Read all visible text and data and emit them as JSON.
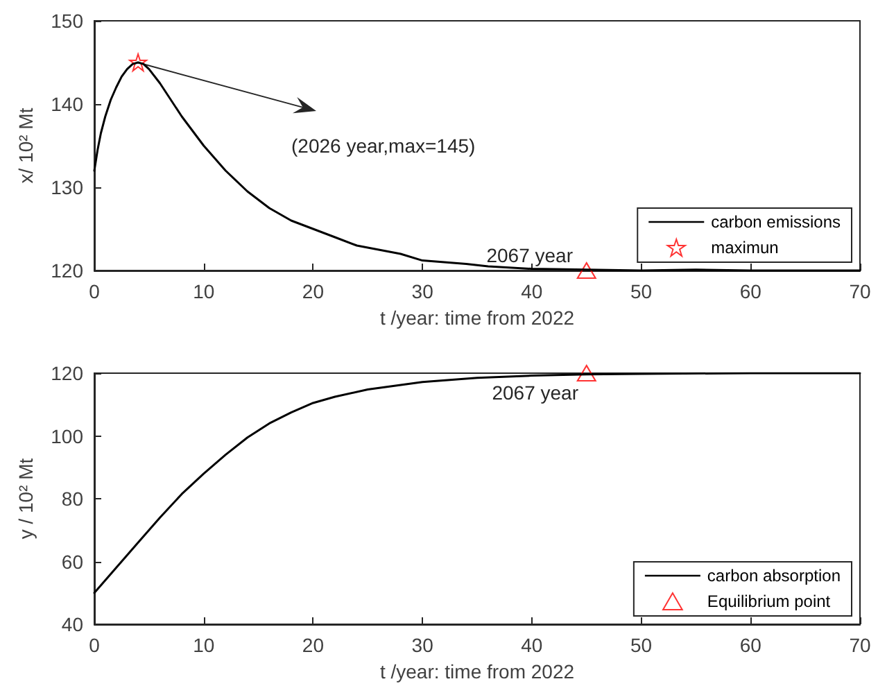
{
  "chart_data": [
    {
      "type": "line",
      "xlabel": "t /year: time from 2022",
      "ylabel": "x/ 10² Mt",
      "xlim": [
        0,
        70
      ],
      "xticks": [
        0,
        10,
        20,
        30,
        40,
        50,
        60,
        70
      ],
      "ylim": [
        120,
        150
      ],
      "yticks": [
        120,
        130,
        140,
        150
      ],
      "grid": false,
      "legend": "bottom right",
      "series": [
        {
          "name": "carbon emissions",
          "color": "#000000",
          "marker": "none",
          "x": [
            0,
            0.3,
            0.6,
            1,
            1.5,
            2,
            2.5,
            3,
            3.5,
            4,
            4.5,
            5,
            6,
            8,
            10,
            12,
            14,
            16,
            18,
            20,
            22,
            24,
            26,
            28,
            30,
            32,
            34,
            36,
            40,
            45,
            50,
            55,
            60,
            70
          ],
          "values": [
            132,
            134.5,
            136.5,
            138.5,
            140.5,
            142,
            143.3,
            144.2,
            144.8,
            145,
            144.8,
            144.2,
            142.5,
            138.5,
            135,
            132,
            129.5,
            127.5,
            126,
            125,
            124,
            123,
            122.5,
            122,
            121.2,
            121,
            120.8,
            120.5,
            120.2,
            120.1,
            120,
            120.1,
            120,
            120
          ]
        },
        {
          "name": "maximun",
          "type": "scatter",
          "color": "#ff0000",
          "marker": "star",
          "x": [
            4
          ],
          "values": [
            145
          ]
        },
        {
          "type": "scatter",
          "color": "#ff0000",
          "marker": "triangle",
          "x": [
            45
          ],
          "values": [
            120
          ]
        }
      ],
      "annotations": [
        "(2026 year,max=145)",
        {
          "text": "2067 year",
          "x": 45,
          "y": 120
        }
      ]
    },
    {
      "type": "line",
      "xlabel": "t /year: time from 2022",
      "ylabel": "y / 10² Mt",
      "xlim": [
        0,
        70
      ],
      "xticks": [
        0,
        10,
        20,
        30,
        40,
        50,
        60,
        70
      ],
      "ylim": [
        40,
        120
      ],
      "yticks": [
        40,
        60,
        80,
        100,
        120
      ],
      "grid": false,
      "legend": "bottom right",
      "series": [
        {
          "name": "carbon absorption",
          "color": "#000000",
          "marker": "none",
          "x": [
            0,
            2,
            4,
            6,
            8,
            10,
            12,
            14,
            16,
            18,
            20,
            22,
            25,
            30,
            35,
            40,
            45,
            50,
            60,
            70
          ],
          "values": [
            50,
            58,
            66,
            74,
            81.5,
            88,
            94,
            99.5,
            104,
            107.5,
            110.5,
            112.5,
            114.8,
            117.2,
            118.5,
            119.2,
            119.6,
            119.8,
            120,
            120
          ]
        },
        {
          "name": "Equilibrium point",
          "type": "scatter",
          "color": "#ff0000",
          "marker": "triangle",
          "x": [
            45
          ],
          "values": [
            120
          ]
        }
      ],
      "annotations": [
        {
          "text": "2067 year",
          "x": 45,
          "y": 120
        }
      ]
    }
  ]
}
